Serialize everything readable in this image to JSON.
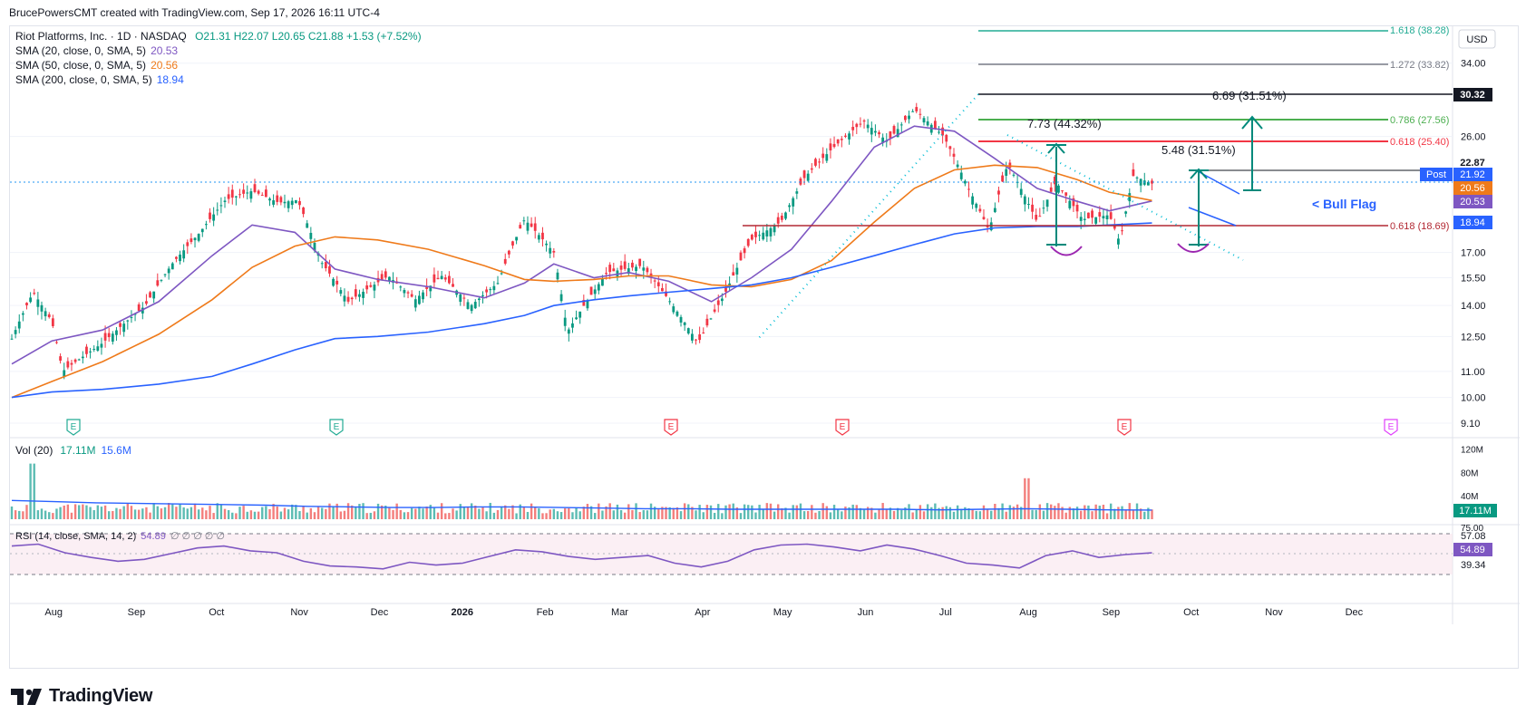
{
  "header": {
    "text": "BrucePowersCMT created with TradingView.com, Sep 17, 2026 16:11 UTC-4"
  },
  "legend": {
    "symbol": "Riot Platforms, Inc. · 1D · NASDAQ",
    "ohlc": "O21.31  H22.07  L20.65  C21.88  +1.53 (+7.52%)",
    "sma20_label": "SMA (20, close, 0, SMA, 5)",
    "sma20_value": "20.53",
    "sma50_label": "SMA (50, close, 0, SMA, 5)",
    "sma50_value": "20.56",
    "sma200_label": "SMA (200, close, 0, SMA, 5)",
    "sma200_value": "18.94"
  },
  "currency_button": "USD",
  "annotations": {
    "fib_1618": "1.618 (38.28)",
    "fib_1272": "1.272 (33.82)",
    "fib_0786": "0.786 (27.56)",
    "fib_0618_upper": "0.618 (25.40)",
    "fib_0618_lower": "0.618 (18.69)",
    "measure_big": "6.69 (31.51%)",
    "measure_left": "7.73 (44.32%)",
    "measure_mid": "5.48 (31.51%)",
    "bull_flag": "< Bull Flag"
  },
  "price_badges": {
    "high": "30.32",
    "level": "22.87",
    "post_label": "Post",
    "post_value": "21.92",
    "sma50": "20.56",
    "sma20": "20.53",
    "sma200": "18.94"
  },
  "volume_legend": {
    "label": "Vol (20)",
    "v1": "17.11M",
    "v2": "15.6M"
  },
  "volume_badge": "17.11M",
  "rsi_legend": {
    "label": "RSI (14, close, SMA, 14, 2)",
    "value": "54.89",
    "extras": "∅ ∅ ∅ ∅ ∅"
  },
  "rsi_badges": {
    "upper": "57.08",
    "current": "54.89",
    "lower": "39.34",
    "cut": "75.00"
  },
  "earnings_marker": "E",
  "brand": "TradingView",
  "chart_data": {
    "type": "line",
    "title": "Riot Platforms, Inc. · 1D · NASDAQ",
    "price_axis": {
      "ticks": [
        "34.00",
        "26.00",
        "17.00",
        "15.50",
        "14.00",
        "12.50",
        "11.00",
        "10.00",
        "9.10"
      ],
      "ylim": [
        9.1,
        38.28
      ],
      "scale": "log"
    },
    "x_axis": {
      "ticks": [
        "Aug",
        "Sep",
        "Oct",
        "Nov",
        "Dec",
        "2026",
        "Feb",
        "Mar",
        "Apr",
        "May",
        "Jun",
        "Jul",
        "Aug",
        "Sep",
        "Oct",
        "Nov",
        "Dec"
      ]
    },
    "series": [
      {
        "name": "SMA (20, close, 0, SMA, 5)",
        "color": "#7e57c2",
        "points": [
          [
            "Jul 17",
            11.3
          ],
          [
            "Aug 1",
            12.3
          ],
          [
            "Aug 20",
            12.8
          ],
          [
            "Sep 10",
            14.2
          ],
          [
            "Sep 30",
            16.8
          ],
          [
            "Oct 15",
            18.8
          ],
          [
            "Oct 31",
            18.3
          ],
          [
            "Nov 15",
            16.0
          ],
          [
            "Dec 1",
            15.4
          ],
          [
            "Dec 20",
            15.0
          ],
          [
            "Jan 10",
            14.4
          ],
          [
            "Jan 25",
            15.2
          ],
          [
            "Feb 5",
            16.3
          ],
          [
            "Feb 20",
            15.5
          ],
          [
            "Mar 5",
            15.8
          ],
          [
            "Mar 20",
            15.3
          ],
          [
            "Apr 5",
            14.2
          ],
          [
            "Apr 20",
            15.5
          ],
          [
            "May 5",
            17.2
          ],
          [
            "May 20",
            20.5
          ],
          [
            "Jun 5",
            25.0
          ],
          [
            "Jun 20",
            27.0
          ],
          [
            "Jul 5",
            26.5
          ],
          [
            "Jul 20",
            24.0
          ],
          [
            "Aug 5",
            21.5
          ],
          [
            "Aug 20",
            20.5
          ],
          [
            "Sep 1",
            19.8
          ],
          [
            "Sep 17",
            20.53
          ]
        ]
      },
      {
        "name": "SMA (50, close, 0, SMA, 5)",
        "color": "#ef7a1a",
        "points": [
          [
            "Jul 17",
            10.0
          ],
          [
            "Aug 1",
            10.6
          ],
          [
            "Aug 20",
            11.4
          ],
          [
            "Sep 10",
            12.6
          ],
          [
            "Sep 30",
            14.3
          ],
          [
            "Oct 15",
            16.1
          ],
          [
            "Oct 31",
            17.4
          ],
          [
            "Nov 15",
            18.0
          ],
          [
            "Dec 1",
            17.8
          ],
          [
            "Dec 20",
            17.2
          ],
          [
            "Jan 10",
            16.2
          ],
          [
            "Jan 25",
            15.4
          ],
          [
            "Feb 5",
            15.3
          ],
          [
            "Feb 20",
            15.4
          ],
          [
            "Mar 5",
            15.6
          ],
          [
            "Mar 20",
            15.6
          ],
          [
            "Apr 5",
            15.1
          ],
          [
            "Apr 20",
            15.0
          ],
          [
            "May 5",
            15.4
          ],
          [
            "May 20",
            16.5
          ],
          [
            "Jun 5",
            19.0
          ],
          [
            "Jun 20",
            21.5
          ],
          [
            "Jul 5",
            23.0
          ],
          [
            "Jul 20",
            23.4
          ],
          [
            "Aug 5",
            23.2
          ],
          [
            "Aug 20",
            22.2
          ],
          [
            "Sep 1",
            21.2
          ],
          [
            "Sep 17",
            20.56
          ]
        ]
      },
      {
        "name": "SMA (200, close, 0, SMA, 5)",
        "color": "#2962ff",
        "points": [
          [
            "Jul 17",
            10.0
          ],
          [
            "Aug 1",
            10.2
          ],
          [
            "Aug 20",
            10.3
          ],
          [
            "Sep 10",
            10.5
          ],
          [
            "Sep 30",
            10.8
          ],
          [
            "Oct 15",
            11.3
          ],
          [
            "Oct 31",
            11.9
          ],
          [
            "Nov 15",
            12.4
          ],
          [
            "Dec 1",
            12.5
          ],
          [
            "Dec 20",
            12.7
          ],
          [
            "Jan 10",
            13.1
          ],
          [
            "Jan 25",
            13.5
          ],
          [
            "Feb 5",
            14.0
          ],
          [
            "Feb 20",
            14.3
          ],
          [
            "Mar 5",
            14.5
          ],
          [
            "Mar 20",
            14.7
          ],
          [
            "Apr 5",
            14.9
          ],
          [
            "Apr 20",
            15.1
          ],
          [
            "May 5",
            15.5
          ],
          [
            "May 20",
            16.1
          ],
          [
            "Jun 5",
            16.8
          ],
          [
            "Jun 20",
            17.5
          ],
          [
            "Jul 5",
            18.2
          ],
          [
            "Jul 20",
            18.6
          ],
          [
            "Aug 5",
            18.7
          ],
          [
            "Aug 20",
            18.7
          ],
          [
            "Sep 1",
            18.8
          ],
          [
            "Sep 17",
            18.94
          ]
        ]
      },
      {
        "name": "Price",
        "color": "#26a69a",
        "points": [
          [
            "Jul 17",
            12.4
          ],
          [
            "Jul 25",
            14.7
          ],
          [
            "Aug 1",
            13.2
          ],
          [
            "Aug 5",
            11.0
          ],
          [
            "Aug 20",
            12.2
          ],
          [
            "Sep 5",
            14.0
          ],
          [
            "Sep 15",
            16.3
          ],
          [
            "Sep 25",
            18.2
          ],
          [
            "Oct 5",
            20.6
          ],
          [
            "Oct 15",
            21.3
          ],
          [
            "Oct 25",
            20.4
          ],
          [
            "Nov 1",
            20.6
          ],
          [
            "Nov 10",
            16.4
          ],
          [
            "Nov 20",
            14.2
          ],
          [
            "Dec 5",
            15.6
          ],
          [
            "Dec 15",
            14.3
          ],
          [
            "Dec 25",
            15.6
          ],
          [
            "Jan 5",
            14.0
          ],
          [
            "Jan 15",
            15.2
          ],
          [
            "Jan 25",
            19.2
          ],
          [
            "Feb 5",
            17.0
          ],
          [
            "Feb 10",
            12.7
          ],
          [
            "Feb 25",
            15.8
          ],
          [
            "Mar 10",
            16.2
          ],
          [
            "Mar 20",
            14.3
          ],
          [
            "Mar 31",
            12.2
          ],
          [
            "Apr 10",
            14.6
          ],
          [
            "Apr 20",
            17.8
          ],
          [
            "May 1",
            19.0
          ],
          [
            "May 10",
            22.4
          ],
          [
            "May 20",
            24.8
          ],
          [
            "Jun 1",
            27.5
          ],
          [
            "Jun 10",
            25.5
          ],
          [
            "Jun 20",
            28.7
          ],
          [
            "Jul 1",
            26.0
          ],
          [
            "Jul 10",
            21.6
          ],
          [
            "Jul 18",
            18.4
          ],
          [
            "Jul 25",
            23.5
          ],
          [
            "Aug 5",
            19.0
          ],
          [
            "Aug 12",
            22.0
          ],
          [
            "Aug 22",
            19.2
          ],
          [
            "Sep 1",
            19.5
          ],
          [
            "Sep 5",
            17.6
          ],
          [
            "Sep 10",
            22.5
          ],
          [
            "Sep 17",
            21.88
          ]
        ]
      }
    ],
    "volume": {
      "axis_ticks": [
        "120M",
        "80M",
        "40M"
      ],
      "sma_values_m": [
        32,
        30,
        28,
        27,
        26,
        25,
        24,
        22,
        21,
        20,
        20,
        21,
        21,
        20,
        19,
        18,
        18,
        17,
        17,
        17,
        17,
        17,
        16,
        17,
        18,
        17,
        16,
        15.6
      ]
    },
    "rsi": {
      "axis_ticks": [
        "57.08",
        "54.89",
        "39.34"
      ],
      "values": [
        62,
        64,
        55,
        50,
        46,
        48,
        54,
        60,
        62,
        57,
        55,
        46,
        41,
        40,
        38,
        45,
        42,
        44,
        51,
        58,
        56,
        51,
        48,
        50,
        52,
        44,
        40,
        46,
        58,
        63,
        64,
        61,
        57,
        63,
        59,
        52,
        44,
        42,
        39,
        52,
        57,
        50,
        53,
        54.89
      ]
    }
  }
}
